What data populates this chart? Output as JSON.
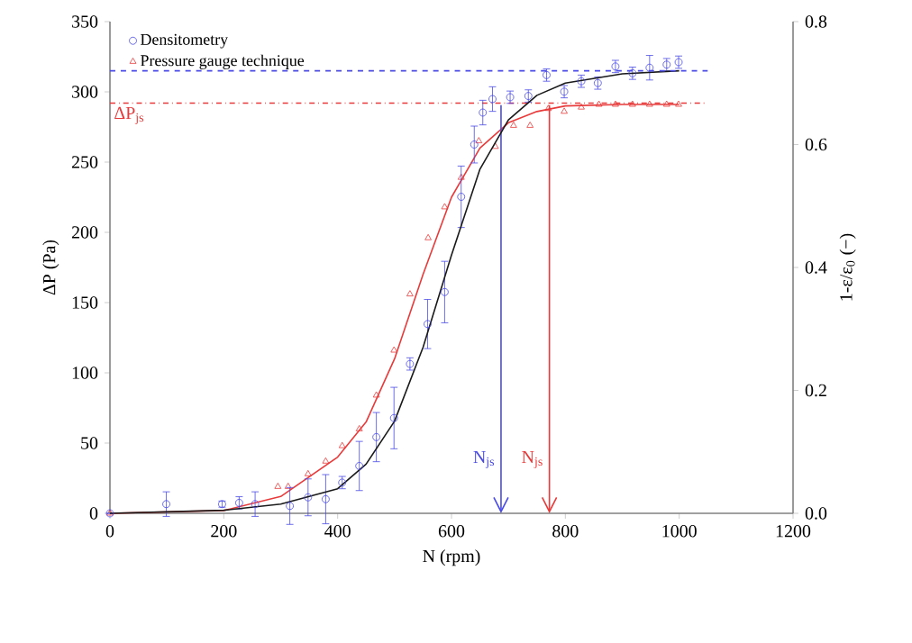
{
  "chart_data": {
    "type": "scatter",
    "xlabel": "N (rpm)",
    "ylabel": "ΔP (Pa)",
    "y2label": "1-ε/ε$_{0}$ (−)",
    "xlim": [
      0,
      1200
    ],
    "xticks": [
      0,
      200,
      400,
      600,
      800,
      1000,
      1200
    ],
    "ylim": [
      0,
      350
    ],
    "yticks": [
      0,
      50,
      100,
      150,
      200,
      250,
      300,
      350
    ],
    "y2lim": [
      0,
      0.8
    ],
    "y2ticks": [
      {
        "value": 0,
        "label": "0.0"
      },
      0.2,
      0.4,
      0.6,
      0.8
    ],
    "legend": "top left",
    "grid": false,
    "series": [
      {
        "name": "Densitometry",
        "type": "scatter",
        "axis": "y2",
        "marker": "circle",
        "color": "#4a4ae6",
        "x": [
          0,
          99,
          197,
          227,
          255,
          316,
          348,
          379,
          408,
          438,
          468,
          499,
          527,
          558,
          588,
          617,
          640,
          655,
          672,
          703,
          735,
          767,
          798,
          828,
          857,
          888,
          918,
          948,
          978,
          999
        ],
        "values": [
          0,
          0.015,
          0.015,
          0.017,
          0.015,
          0.012,
          0.026,
          0.023,
          0.05,
          0.077,
          0.124,
          0.155,
          0.243,
          0.308,
          0.36,
          0.515,
          0.6,
          0.652,
          0.674,
          0.677,
          0.679,
          0.713,
          0.686,
          0.703,
          0.7,
          0.727,
          0.716,
          0.725,
          0.73,
          0.734
        ],
        "errors": [
          null,
          0.02,
          0.005,
          0.01,
          0.02,
          0.03,
          0.03,
          0.04,
          0.01,
          0.04,
          0.04,
          0.05,
          0.01,
          0.04,
          0.05,
          0.05,
          0.03,
          0.02,
          0.02,
          0.01,
          0.01,
          0.01,
          0.01,
          0.01,
          0.01,
          0.01,
          0.01,
          0.02,
          0.01,
          0.01
        ]
      },
      {
        "name": "Pressure gauge technique",
        "type": "scatter",
        "axis": "y",
        "marker": "triangle",
        "color": "#e83a3a",
        "x": [
          0,
          295,
          313,
          348,
          379,
          408,
          438,
          468,
          499,
          527,
          559,
          588,
          617,
          648,
          677,
          709,
          738,
          770,
          798,
          828,
          859,
          888,
          918,
          948,
          978,
          999
        ],
        "values": [
          0,
          19,
          19,
          28,
          37,
          48,
          60,
          84,
          116,
          156,
          196,
          218,
          239,
          265,
          261,
          276,
          276,
          288,
          286,
          289,
          291,
          291,
          291,
          291,
          291,
          291
        ]
      },
      {
        "type": "line",
        "axis": "y2",
        "marker": "none",
        "line_style": "solid",
        "color": "#1a1a1a",
        "x": [
          0,
          200,
          300,
          400,
          450,
          500,
          550,
          600,
          650,
          700,
          750,
          800,
          900,
          1000
        ],
        "values": [
          0,
          0.005,
          0.015,
          0.04,
          0.08,
          0.15,
          0.27,
          0.42,
          0.56,
          0.64,
          0.68,
          0.7,
          0.715,
          0.72
        ]
      },
      {
        "type": "line",
        "axis": "y",
        "marker": "none",
        "line_style": "solid",
        "color": "#e83a3a",
        "x": [
          0,
          200,
          300,
          400,
          450,
          500,
          550,
          600,
          650,
          700,
          750,
          800,
          900,
          1000
        ],
        "values": [
          0,
          2,
          12,
          40,
          65,
          110,
          170,
          225,
          260,
          278,
          286,
          290,
          291,
          291
        ]
      }
    ],
    "ref_lines": [
      {
        "axis": "y",
        "value": 292,
        "label": "ΔP$_{js}$",
        "color": "#e83a3a",
        "line_style": "dashdot"
      },
      {
        "axis": "y2",
        "value": 0.72,
        "color": "#4a4ae6",
        "line_style": "dashed"
      },
      {
        "axis": "x",
        "value": 687,
        "label": "N$_{js}$",
        "color": "#4a4ae6",
        "line_style": "solid"
      },
      {
        "axis": "x",
        "value": 772,
        "label": "N$_{js}$",
        "color": "#e83a3a",
        "line_style": "solid"
      }
    ]
  }
}
